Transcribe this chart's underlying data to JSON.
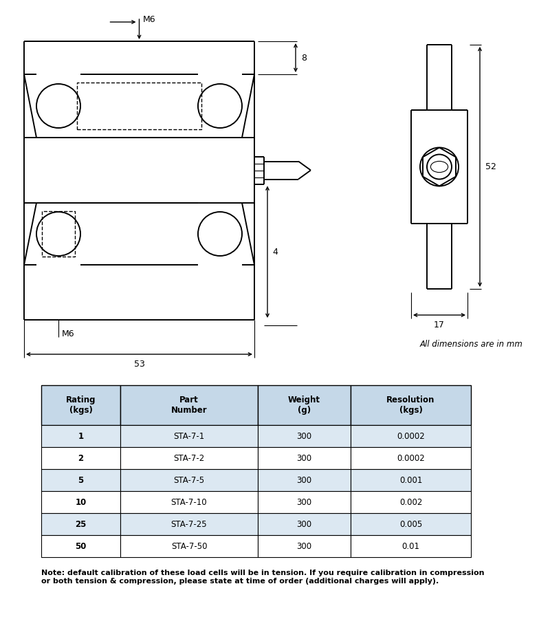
{
  "bg_color": "#ffffff",
  "line_color": "#000000",
  "table_header_bg": "#c5d8e8",
  "table_row_bg": "#dce8f2",
  "table_alt_row_bg": "#ffffff",
  "table_headers": [
    "Rating\n(kgs)",
    "Part\nNumber",
    "Weight\n(g)",
    "Resolution\n(kgs)"
  ],
  "table_rows": [
    [
      "1",
      "STA-7-1",
      "300",
      "0.0002"
    ],
    [
      "2",
      "STA-7-2",
      "300",
      "0.0002"
    ],
    [
      "5",
      "STA-7-5",
      "300",
      "0.001"
    ],
    [
      "10",
      "STA-7-10",
      "300",
      "0.002"
    ],
    [
      "25",
      "STA-7-25",
      "300",
      "0.005"
    ],
    [
      "50",
      "STA-7-50",
      "300",
      "0.01"
    ]
  ],
  "dim_note": "All dimensions are in mm",
  "footer_note": "Note: default calibration of these load cells will be in tension. If you require calibration in compression\nor both tension & compression, please state at time of order (additional charges will apply).",
  "dim_M6_top": "M6",
  "dim_8": "8",
  "dim_4": "4",
  "dim_53": "53",
  "dim_M6_bottom": "M6",
  "dim_52": "52",
  "dim_17": "17"
}
